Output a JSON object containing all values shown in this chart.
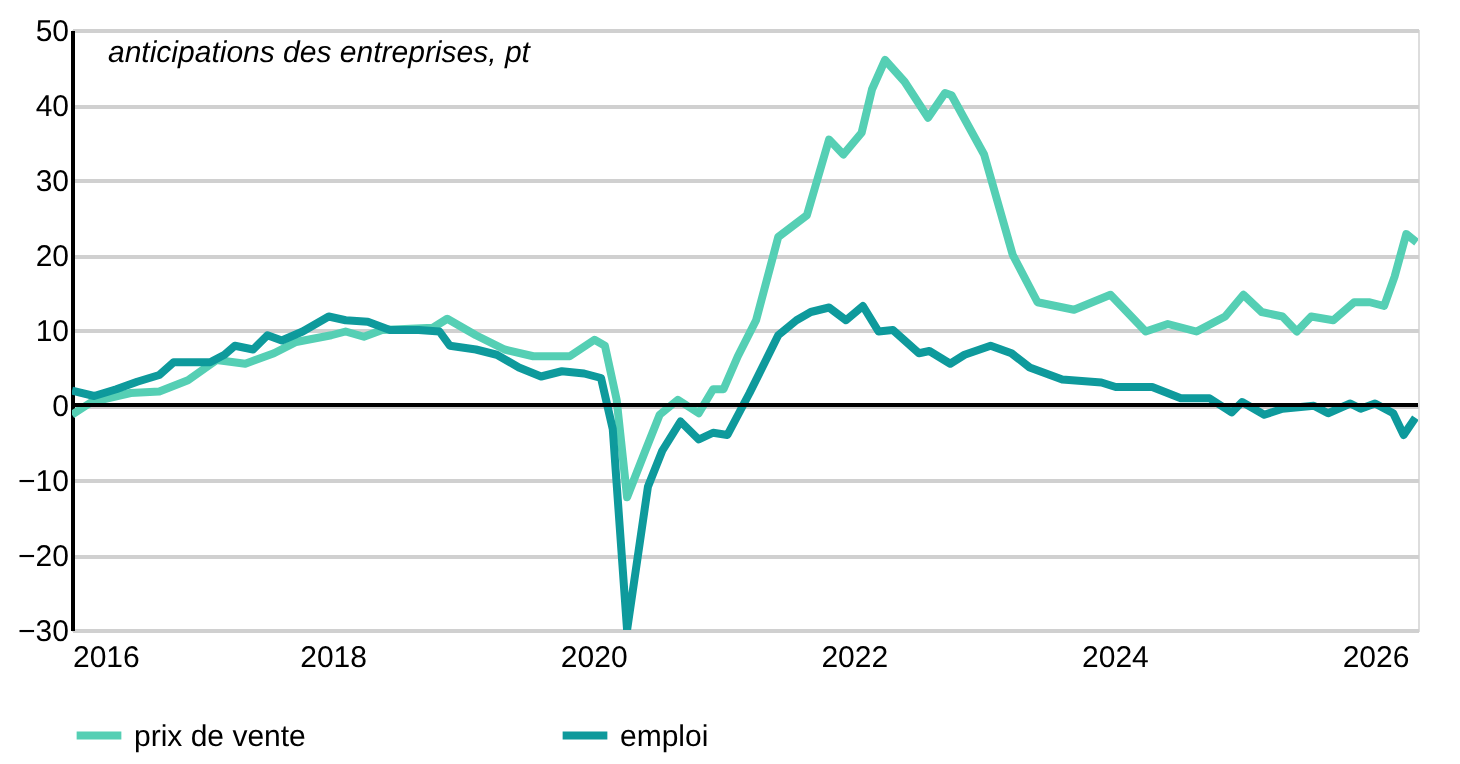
{
  "chart_data": {
    "type": "line",
    "ylabel": "anticipations des entreprises, pt",
    "xlim": [
      2016,
      2026.33
    ],
    "xticks": [
      2016,
      2018,
      2020,
      2022,
      2024,
      2026
    ],
    "ylim": [
      -30,
      50
    ],
    "yticks": [
      -30,
      -20,
      -10,
      0,
      10,
      20,
      30,
      40,
      50
    ],
    "grid": "y",
    "legend": "bottom",
    "line_style": "solid",
    "marker": "none",
    "ref_lines": [
      {
        "axis": "y",
        "value": 0,
        "color": "#000000"
      }
    ],
    "series": [
      {
        "name": "prix de vente",
        "color": "#55cfb4",
        "x": [
          2016.0,
          2016.15,
          2016.45,
          2016.67,
          2016.89,
          2017.11,
          2017.33,
          2017.55,
          2017.72,
          2017.99,
          2018.1,
          2018.24,
          2018.38,
          2018.77,
          2018.88,
          2019.1,
          2019.32,
          2019.54,
          2019.82,
          2020.01,
          2020.09,
          2020.18,
          2020.26,
          2020.4,
          2020.51,
          2020.65,
          2020.81,
          2020.92,
          2021.0,
          2021.11,
          2021.25,
          2021.42,
          2021.64,
          2021.81,
          2021.92,
          2022.06,
          2022.14,
          2022.24,
          2022.39,
          2022.57,
          2022.7,
          2022.75,
          2023.0,
          2023.22,
          2023.41,
          2023.69,
          2023.97,
          2024.24,
          2024.41,
          2024.63,
          2024.85,
          2024.99,
          2025.13,
          2025.29,
          2025.4,
          2025.51,
          2025.68,
          2025.84,
          2025.96,
          2026.07,
          2026.15,
          2026.24,
          2026.32
        ],
        "values": [
          -1.3,
          0.4,
          1.6,
          1.8,
          3.3,
          6.0,
          5.5,
          6.9,
          8.4,
          9.3,
          9.8,
          9.1,
          10.0,
          10.3,
          11.5,
          9.3,
          7.4,
          6.5,
          6.5,
          8.7,
          7.9,
          0.7,
          -12.3,
          -6.1,
          -1.3,
          0.7,
          -1.1,
          2.1,
          2.1,
          6.5,
          11.3,
          22.4,
          25.3,
          35.4,
          33.4,
          36.3,
          42.1,
          46.0,
          43.1,
          38.3,
          41.6,
          41.3,
          33.4,
          20.0,
          13.7,
          12.7,
          14.7,
          9.8,
          10.8,
          9.8,
          11.8,
          14.7,
          12.4,
          11.8,
          9.8,
          11.8,
          11.3,
          13.7,
          13.7,
          13.2,
          17.1,
          22.8,
          21.7
        ]
      },
      {
        "name": "emploi",
        "color": "#0e9a9c",
        "x": [
          2016.0,
          2016.17,
          2016.34,
          2016.5,
          2016.67,
          2016.78,
          2017.06,
          2017.17,
          2017.25,
          2017.39,
          2017.5,
          2017.61,
          2017.77,
          2017.97,
          2018.1,
          2018.27,
          2018.44,
          2018.66,
          2018.82,
          2018.9,
          2019.1,
          2019.26,
          2019.43,
          2019.6,
          2019.76,
          2019.93,
          2020.06,
          2020.15,
          2020.26,
          2020.42,
          2020.53,
          2020.67,
          2020.81,
          2020.92,
          2021.03,
          2021.2,
          2021.42,
          2021.56,
          2021.67,
          2021.81,
          2021.94,
          2022.07,
          2022.19,
          2022.3,
          2022.5,
          2022.58,
          2022.74,
          2022.85,
          2023.05,
          2023.21,
          2023.35,
          2023.6,
          2023.9,
          2024.01,
          2024.29,
          2024.51,
          2024.73,
          2024.9,
          2024.98,
          2025.15,
          2025.29,
          2025.53,
          2025.64,
          2025.81,
          2025.89,
          2026.0,
          2026.14,
          2026.22,
          2026.31
        ],
        "values": [
          1.9,
          1.2,
          2.1,
          3.1,
          4.0,
          5.7,
          5.7,
          6.7,
          7.9,
          7.4,
          9.3,
          8.6,
          9.8,
          11.8,
          11.3,
          11.1,
          10.0,
          10.0,
          9.8,
          7.9,
          7.4,
          6.7,
          5.0,
          3.8,
          4.5,
          4.2,
          3.6,
          -3.2,
          -30,
          -10.9,
          -6.1,
          -2.2,
          -4.6,
          -3.7,
          -4.0,
          1.6,
          9.3,
          11.3,
          12.4,
          13.0,
          11.3,
          13.2,
          9.8,
          10.0,
          6.9,
          7.2,
          5.5,
          6.7,
          7.9,
          6.9,
          5.0,
          3.4,
          3.0,
          2.4,
          2.4,
          0.9,
          0.9,
          -1.0,
          0.4,
          -1.3,
          -0.5,
          -0.1,
          -1.1,
          0.2,
          -0.5,
          0.2,
          -1.1,
          -4.0,
          -1.7
        ]
      }
    ]
  }
}
